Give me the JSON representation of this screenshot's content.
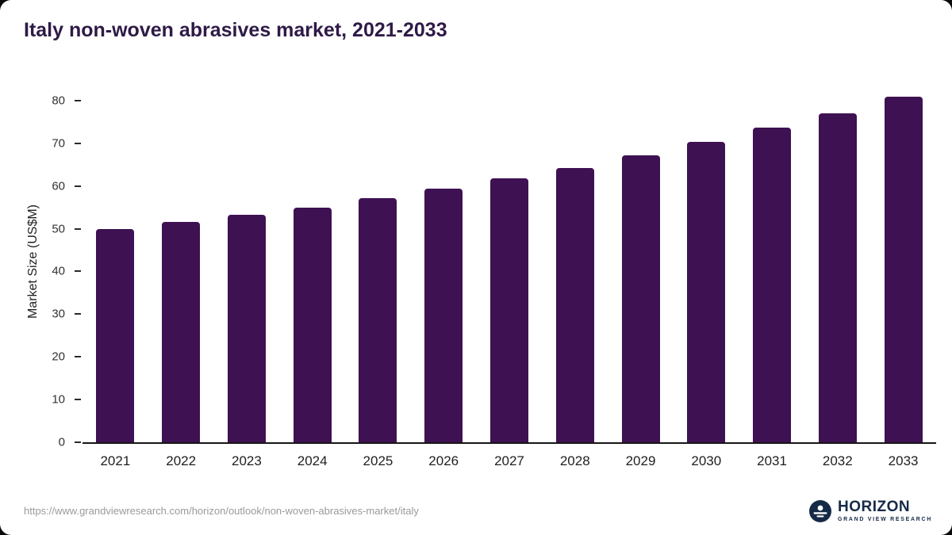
{
  "title": "Italy non-woven abrasives market, 2021-2033",
  "colors": {
    "bar": "#3E1152",
    "title": "#2E1A47",
    "axis": "#161616",
    "logo_navy": "#152A47"
  },
  "footer": {
    "source_url": "https://www.grandviewresearch.com/horizon/outlook/non-woven-abrasives-market/italy",
    "logo_title": "HORIZON",
    "logo_subtitle": "GRAND VIEW RESEARCH"
  },
  "chart_data": {
    "type": "bar",
    "title": "Italy non-woven abrasives market, 2021-2033",
    "categories": [
      "2021",
      "2022",
      "2023",
      "2024",
      "2025",
      "2026",
      "2027",
      "2028",
      "2029",
      "2030",
      "2031",
      "2032",
      "2033"
    ],
    "values": [
      50,
      51.6,
      53.3,
      54.9,
      57.1,
      59.3,
      61.8,
      64.3,
      67.2,
      70.3,
      73.6,
      77.1,
      81
    ],
    "xlabel": "",
    "ylabel": "Market Size (US$M)",
    "ylim": [
      0,
      85
    ],
    "yticks": [
      0,
      10,
      20,
      30,
      40,
      50,
      60,
      70,
      80
    ],
    "grid": false,
    "legend": false,
    "bar_color": "#3E1152"
  }
}
